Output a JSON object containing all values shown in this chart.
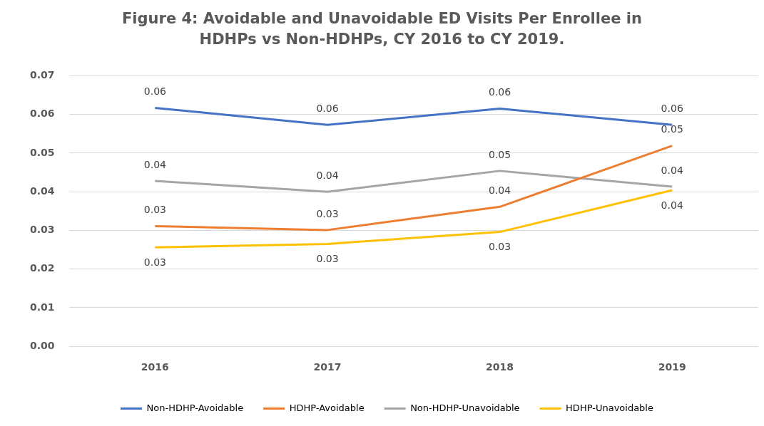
{
  "chart_data": {
    "type": "line",
    "title": "Figure 4: Avoidable and Unavoidable ED Visits Per Enrollee in HDHPs vs Non-HDHPs, CY 2016 to CY 2019.",
    "categories": [
      "2016",
      "2017",
      "2018",
      "2019"
    ],
    "series": [
      {
        "name": "Non-HDHP-Avoidable",
        "color": "#4472c4",
        "values": [
          0.0617,
          0.0573,
          0.0615,
          0.0573
        ],
        "value_labels": [
          "0.06",
          "0.06",
          "0.06",
          "0.06"
        ]
      },
      {
        "name": "HDHP-Avoidable",
        "color": "#ed7d31",
        "values": [
          0.0311,
          0.0301,
          0.0361,
          0.0519
        ],
        "value_labels": [
          "0.03",
          "0.03",
          "0.04",
          "0.05"
        ]
      },
      {
        "name": "Non-HDHP-Unavoidable",
        "color": "#a5a5a5",
        "values": [
          0.0428,
          0.04,
          0.0454,
          0.0413
        ],
        "value_labels": [
          "0.04",
          "0.04",
          "0.05",
          "0.04"
        ]
      },
      {
        "name": "HDHP-Unavoidable",
        "color": "#ffc000",
        "values": [
          0.0256,
          0.0265,
          0.0296,
          0.0404
        ],
        "value_labels": [
          "0.03",
          "0.03",
          "0.03",
          "0.04"
        ]
      }
    ],
    "ylim": [
      0,
      0.07
    ],
    "yticks": [
      {
        "value": 0,
        "label": "0.00"
      },
      0.01,
      0.02,
      0.03,
      0.04,
      0.05,
      0.06,
      0.07
    ],
    "grid": "y",
    "legend": "bottom",
    "marker": "none",
    "line_style": "solid"
  }
}
